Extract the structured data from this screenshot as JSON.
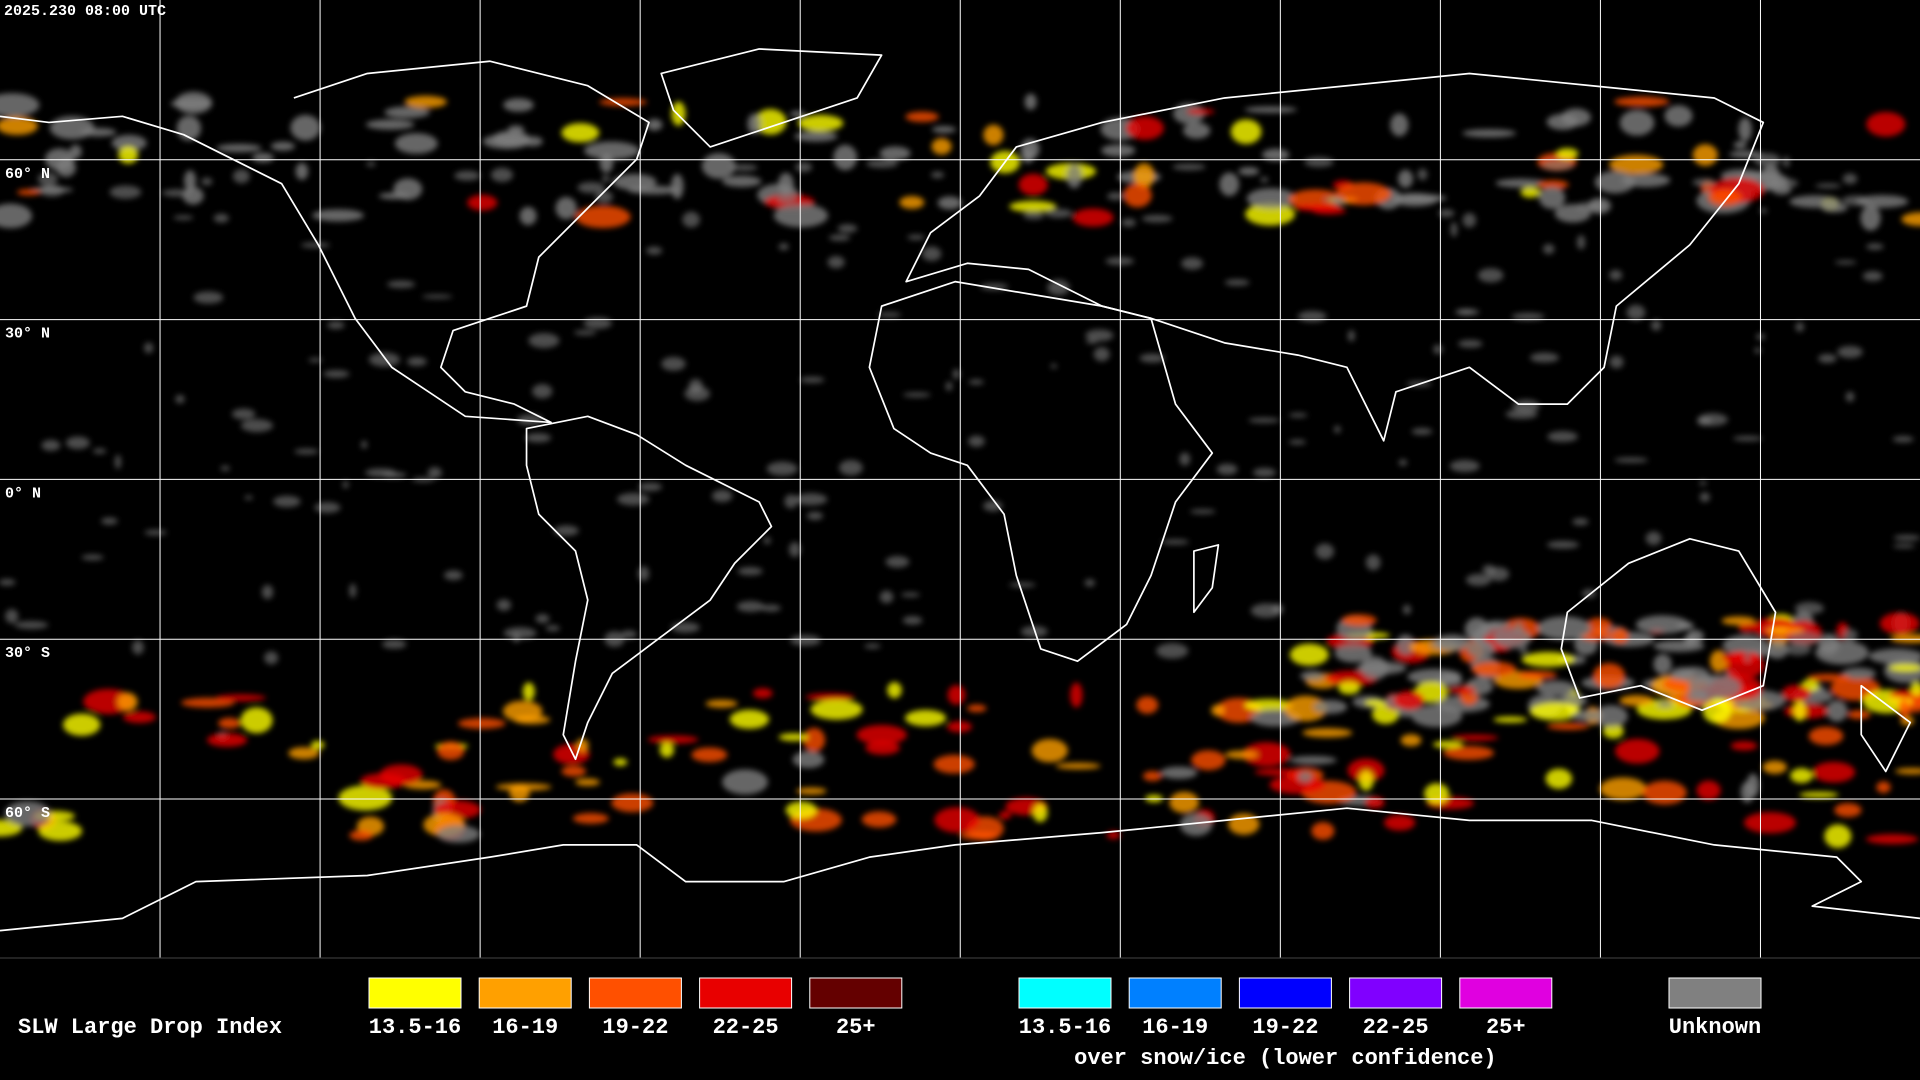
{
  "header": {
    "timestamp": "2025.230 08:00 UTC"
  },
  "map": {
    "lat_labels": [
      "60° N",
      "30° N",
      "0° N",
      "30° S",
      "60° S"
    ]
  },
  "legend": {
    "title": "SLW Large Drop Index",
    "groups": [
      {
        "items": [
          {
            "label": "13.5-16",
            "color": "#ffff00"
          },
          {
            "label": "16-19",
            "color": "#ffa000"
          },
          {
            "label": "19-22",
            "color": "#ff5000"
          },
          {
            "label": "22-25",
            "color": "#e80000"
          },
          {
            "label": "25+",
            "color": "#640000"
          }
        ]
      },
      {
        "items": [
          {
            "label": "13.5-16",
            "color": "#00ffff"
          },
          {
            "label": "16-19",
            "color": "#0080ff"
          },
          {
            "label": "19-22",
            "color": "#0000ff"
          },
          {
            "label": "22-25",
            "color": "#8000ff"
          },
          {
            "label": "25+",
            "color": "#e000e0"
          }
        ],
        "caption": "over snow/ice (lower confidence)"
      },
      {
        "items": [
          {
            "label": "Unknown",
            "color": "#808080"
          }
        ]
      }
    ]
  }
}
